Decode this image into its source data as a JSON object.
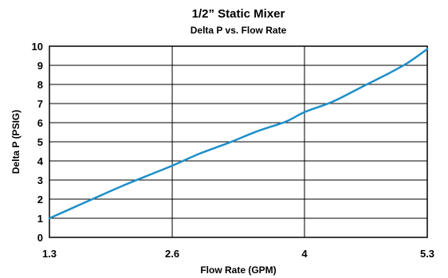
{
  "chart_data": {
    "type": "line",
    "title": "1/2” Static Mixer",
    "subtitle": "Delta P vs. Flow Rate",
    "xlabel": "Flow Rate (GPM)",
    "ylabel": "Delta P (PSIG)",
    "x_ticks": [
      "1.3",
      "2.6",
      "4",
      "5.3"
    ],
    "x_tick_values": [
      1.3,
      2.6,
      4,
      5.3
    ],
    "y_ticks": [
      "0",
      "1",
      "2",
      "3",
      "4",
      "5",
      "6",
      "7",
      "8",
      "9",
      "10"
    ],
    "xlim": [
      1.3,
      5.3
    ],
    "ylim": [
      0,
      10
    ],
    "grid": true,
    "series": [
      {
        "color": "#1e8fc8",
        "x": [
          1.3,
          1.55,
          1.8,
          2.1,
          2.4,
          2.6,
          2.9,
          3.2,
          3.5,
          3.8,
          4.0,
          4.3,
          4.6,
          4.9,
          5.1,
          5.3
        ],
        "y": [
          1.0,
          1.55,
          2.1,
          2.75,
          3.35,
          3.75,
          4.4,
          4.95,
          5.55,
          6.05,
          6.55,
          7.1,
          7.85,
          8.6,
          9.15,
          9.85
        ]
      }
    ]
  }
}
